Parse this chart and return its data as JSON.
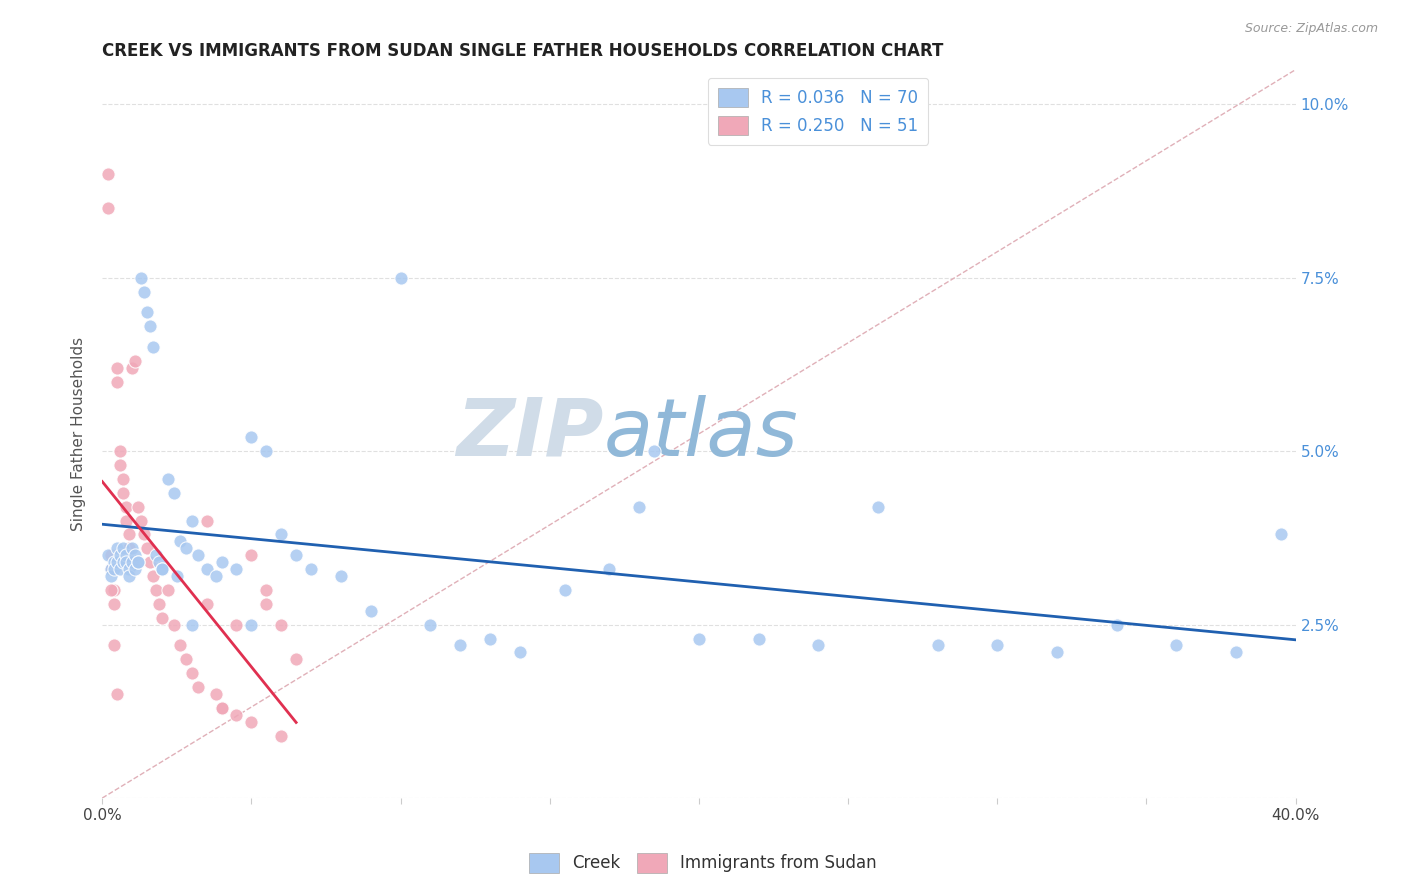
{
  "title": "CREEK VS IMMIGRANTS FROM SUDAN SINGLE FATHER HOUSEHOLDS CORRELATION CHART",
  "source": "Source: ZipAtlas.com",
  "ylabel": "Single Father Households",
  "ytick_values": [
    0.0,
    0.025,
    0.05,
    0.075,
    0.1
  ],
  "xmin": 0.0,
  "xmax": 0.4,
  "ymin": 0.0,
  "ymax": 0.105,
  "creek_color": "#a8c8f0",
  "sudan_color": "#f0a8b8",
  "creek_edge": "#90b4e0",
  "sudan_edge": "#e090a0",
  "creek_line_color": "#2060b0",
  "sudan_line_color": "#e03050",
  "diagonal_color": "#e0b0b8",
  "grid_color": "#e0e0e0",
  "background_color": "#ffffff",
  "creek_N": 70,
  "sudan_N": 51,
  "creek_R": 0.036,
  "sudan_R": 0.25,
  "creek_x": [
    0.002,
    0.003,
    0.003,
    0.004,
    0.004,
    0.005,
    0.005,
    0.006,
    0.006,
    0.007,
    0.007,
    0.008,
    0.008,
    0.009,
    0.009,
    0.01,
    0.01,
    0.011,
    0.011,
    0.012,
    0.013,
    0.014,
    0.015,
    0.016,
    0.017,
    0.018,
    0.019,
    0.02,
    0.022,
    0.024,
    0.026,
    0.028,
    0.03,
    0.032,
    0.035,
    0.038,
    0.04,
    0.045,
    0.05,
    0.055,
    0.06,
    0.065,
    0.07,
    0.08,
    0.09,
    0.1,
    0.11,
    0.12,
    0.13,
    0.14,
    0.155,
    0.17,
    0.185,
    0.2,
    0.22,
    0.24,
    0.26,
    0.28,
    0.3,
    0.32,
    0.34,
    0.36,
    0.38,
    0.395,
    0.012,
    0.02,
    0.025,
    0.03,
    0.05,
    0.18
  ],
  "creek_y": [
    0.035,
    0.033,
    0.032,
    0.034,
    0.033,
    0.036,
    0.034,
    0.035,
    0.033,
    0.036,
    0.034,
    0.035,
    0.034,
    0.033,
    0.032,
    0.036,
    0.034,
    0.035,
    0.033,
    0.034,
    0.075,
    0.073,
    0.07,
    0.068,
    0.065,
    0.035,
    0.034,
    0.033,
    0.046,
    0.044,
    0.037,
    0.036,
    0.04,
    0.035,
    0.033,
    0.032,
    0.034,
    0.033,
    0.052,
    0.05,
    0.038,
    0.035,
    0.033,
    0.032,
    0.027,
    0.075,
    0.025,
    0.022,
    0.023,
    0.021,
    0.03,
    0.033,
    0.05,
    0.023,
    0.023,
    0.022,
    0.042,
    0.022,
    0.022,
    0.021,
    0.025,
    0.022,
    0.021,
    0.038,
    0.034,
    0.033,
    0.032,
    0.025,
    0.025,
    0.042
  ],
  "sudan_x": [
    0.002,
    0.002,
    0.003,
    0.003,
    0.004,
    0.004,
    0.005,
    0.005,
    0.006,
    0.006,
    0.007,
    0.007,
    0.008,
    0.008,
    0.009,
    0.009,
    0.01,
    0.01,
    0.011,
    0.012,
    0.013,
    0.014,
    0.015,
    0.016,
    0.017,
    0.018,
    0.019,
    0.02,
    0.022,
    0.024,
    0.026,
    0.028,
    0.03,
    0.032,
    0.035,
    0.038,
    0.04,
    0.045,
    0.05,
    0.055,
    0.06,
    0.065,
    0.035,
    0.04,
    0.045,
    0.05,
    0.055,
    0.06,
    0.003,
    0.004,
    0.005
  ],
  "sudan_y": [
    0.09,
    0.085,
    0.035,
    0.033,
    0.03,
    0.028,
    0.062,
    0.06,
    0.05,
    0.048,
    0.046,
    0.044,
    0.042,
    0.04,
    0.038,
    0.036,
    0.034,
    0.062,
    0.063,
    0.042,
    0.04,
    0.038,
    0.036,
    0.034,
    0.032,
    0.03,
    0.028,
    0.026,
    0.03,
    0.025,
    0.022,
    0.02,
    0.018,
    0.016,
    0.04,
    0.015,
    0.013,
    0.025,
    0.035,
    0.03,
    0.025,
    0.02,
    0.028,
    0.013,
    0.012,
    0.011,
    0.028,
    0.009,
    0.03,
    0.022,
    0.015
  ],
  "watermark_zip": "ZIP",
  "watermark_atlas": "atlas",
  "wm_zip_color": "#d0dce8",
  "wm_atlas_color": "#90b8d8"
}
